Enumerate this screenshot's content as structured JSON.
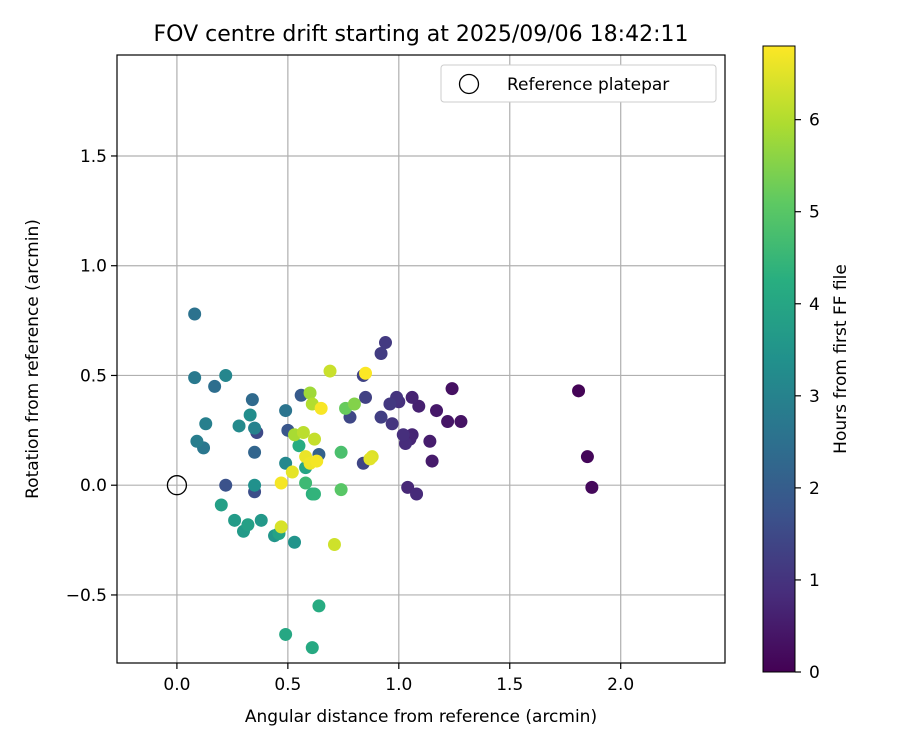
{
  "chart_data": {
    "type": "scatter",
    "title": "FOV centre drift starting at 2025/09/06 18:42:11",
    "xlabel": "Angular distance from reference (arcmin)",
    "ylabel": "Rotation from reference (arcmin)",
    "xlim": [
      -0.27,
      2.47
    ],
    "ylim": [
      -0.81,
      1.96
    ],
    "xticks": [
      0.0,
      0.5,
      1.0,
      1.5,
      2.0
    ],
    "xtick_labels": [
      "0.0",
      "0.5",
      "1.0",
      "1.5",
      "2.0"
    ],
    "yticks": [
      -0.5,
      0.0,
      0.5,
      1.0,
      1.5
    ],
    "ytick_labels": [
      "−0.5",
      "0.0",
      "0.5",
      "1.0",
      "1.5"
    ],
    "grid": true,
    "legend": {
      "placement": "top-right",
      "entries": [
        "Reference platepar"
      ]
    },
    "reference_point": {
      "x": 0.0,
      "y": 0.0,
      "label": "Reference platepar"
    },
    "colorbar": {
      "label": "Hours from first FF file",
      "range": [
        0,
        6.8
      ],
      "ticks": [
        0,
        1,
        2,
        3,
        4,
        5,
        6
      ],
      "tick_labels": [
        "0",
        "1",
        "2",
        "3",
        "4",
        "5",
        "6"
      ],
      "colormap": "viridis"
    },
    "points": [
      {
        "x": 1.81,
        "y": 0.43,
        "c": 0.05
      },
      {
        "x": 1.85,
        "y": 0.13,
        "c": 0.1
      },
      {
        "x": 1.87,
        "y": -0.01,
        "c": 0.15
      },
      {
        "x": 1.24,
        "y": 0.44,
        "c": 0.3
      },
      {
        "x": 1.28,
        "y": 0.29,
        "c": 0.35
      },
      {
        "x": 1.22,
        "y": 0.29,
        "c": 0.4
      },
      {
        "x": 1.17,
        "y": 0.34,
        "c": 0.45
      },
      {
        "x": 1.15,
        "y": 0.11,
        "c": 0.5
      },
      {
        "x": 1.14,
        "y": 0.2,
        "c": 0.55
      },
      {
        "x": 1.09,
        "y": 0.36,
        "c": 0.6
      },
      {
        "x": 1.06,
        "y": 0.4,
        "c": 0.65
      },
      {
        "x": 1.06,
        "y": 0.23,
        "c": 0.7
      },
      {
        "x": 1.05,
        "y": 0.21,
        "c": 0.72
      },
      {
        "x": 1.04,
        "y": -0.01,
        "c": 0.75
      },
      {
        "x": 1.08,
        "y": -0.04,
        "c": 0.8
      },
      {
        "x": 1.03,
        "y": 0.19,
        "c": 0.85
      },
      {
        "x": 1.02,
        "y": 0.23,
        "c": 0.9
      },
      {
        "x": 1.0,
        "y": 0.38,
        "c": 0.95
      },
      {
        "x": 0.99,
        "y": 0.4,
        "c": 1.0
      },
      {
        "x": 0.97,
        "y": 0.28,
        "c": 1.05
      },
      {
        "x": 0.96,
        "y": 0.37,
        "c": 1.1
      },
      {
        "x": 0.94,
        "y": 0.65,
        "c": 1.15
      },
      {
        "x": 0.92,
        "y": 0.6,
        "c": 1.2
      },
      {
        "x": 0.92,
        "y": 0.31,
        "c": 1.25
      },
      {
        "x": 0.85,
        "y": 0.4,
        "c": 1.3
      },
      {
        "x": 0.84,
        "y": 0.5,
        "c": 1.35
      },
      {
        "x": 0.84,
        "y": 0.1,
        "c": 1.4
      },
      {
        "x": 0.78,
        "y": 0.31,
        "c": 1.45
      },
      {
        "x": 0.36,
        "y": 0.24,
        "c": 1.5
      },
      {
        "x": 0.35,
        "y": -0.03,
        "c": 1.6
      },
      {
        "x": 0.22,
        "y": 0.0,
        "c": 1.7
      },
      {
        "x": 0.5,
        "y": 0.25,
        "c": 1.8
      },
      {
        "x": 0.56,
        "y": 0.41,
        "c": 1.9
      },
      {
        "x": 0.64,
        "y": 0.14,
        "c": 2.1
      },
      {
        "x": 0.35,
        "y": 0.15,
        "c": 2.2
      },
      {
        "x": 0.34,
        "y": 0.39,
        "c": 2.35
      },
      {
        "x": 0.17,
        "y": 0.45,
        "c": 2.45
      },
      {
        "x": 0.08,
        "y": 0.78,
        "c": 2.55
      },
      {
        "x": 0.49,
        "y": 0.34,
        "c": 2.6
      },
      {
        "x": 0.12,
        "y": 0.17,
        "c": 2.7
      },
      {
        "x": 0.08,
        "y": 0.49,
        "c": 2.75
      },
      {
        "x": 0.09,
        "y": 0.2,
        "c": 2.85
      },
      {
        "x": 0.13,
        "y": 0.28,
        "c": 2.9
      },
      {
        "x": 0.35,
        "y": 0.26,
        "c": 3.0
      },
      {
        "x": 0.22,
        "y": 0.5,
        "c": 3.1
      },
      {
        "x": 0.49,
        "y": 0.1,
        "c": 3.15
      },
      {
        "x": 0.28,
        "y": 0.27,
        "c": 3.2
      },
      {
        "x": 0.33,
        "y": 0.32,
        "c": 3.3
      },
      {
        "x": 0.35,
        "y": 0.0,
        "c": 3.4
      },
      {
        "x": 0.53,
        "y": -0.26,
        "c": 3.5
      },
      {
        "x": 0.44,
        "y": -0.23,
        "c": 3.55
      },
      {
        "x": 0.38,
        "y": -0.16,
        "c": 3.6
      },
      {
        "x": 0.3,
        "y": -0.21,
        "c": 3.65
      },
      {
        "x": 0.26,
        "y": -0.16,
        "c": 3.7
      },
      {
        "x": 0.2,
        "y": -0.09,
        "c": 3.8
      },
      {
        "x": 0.32,
        "y": -0.18,
        "c": 3.85
      },
      {
        "x": 0.46,
        "y": -0.22,
        "c": 3.9
      },
      {
        "x": 0.58,
        "y": 0.08,
        "c": 4.0
      },
      {
        "x": 0.49,
        "y": -0.68,
        "c": 4.05
      },
      {
        "x": 0.61,
        "y": -0.74,
        "c": 4.1
      },
      {
        "x": 0.64,
        "y": -0.55,
        "c": 4.15
      },
      {
        "x": 0.55,
        "y": 0.18,
        "c": 4.2
      },
      {
        "x": 0.61,
        "y": -0.04,
        "c": 4.3
      },
      {
        "x": 0.62,
        "y": -0.04,
        "c": 4.4
      },
      {
        "x": 0.58,
        "y": 0.01,
        "c": 4.6
      },
      {
        "x": 0.74,
        "y": 0.15,
        "c": 4.8
      },
      {
        "x": 0.74,
        "y": -0.02,
        "c": 5.0
      },
      {
        "x": 0.76,
        "y": 0.35,
        "c": 5.2
      },
      {
        "x": 0.8,
        "y": 0.37,
        "c": 5.5
      },
      {
        "x": 0.6,
        "y": 0.42,
        "c": 5.8
      },
      {
        "x": 0.53,
        "y": 0.23,
        "c": 5.9
      },
      {
        "x": 0.61,
        "y": 0.37,
        "c": 6.0
      },
      {
        "x": 0.57,
        "y": 0.24,
        "c": 6.1
      },
      {
        "x": 0.62,
        "y": 0.21,
        "c": 6.2
      },
      {
        "x": 0.69,
        "y": 0.52,
        "c": 6.25
      },
      {
        "x": 0.71,
        "y": -0.27,
        "c": 6.3
      },
      {
        "x": 0.47,
        "y": -0.19,
        "c": 6.4
      },
      {
        "x": 0.88,
        "y": 0.13,
        "c": 6.45
      },
      {
        "x": 0.87,
        "y": 0.12,
        "c": 6.5
      },
      {
        "x": 0.52,
        "y": 0.06,
        "c": 6.55
      },
      {
        "x": 0.58,
        "y": 0.13,
        "c": 6.6
      },
      {
        "x": 0.6,
        "y": 0.1,
        "c": 6.65
      },
      {
        "x": 0.63,
        "y": 0.11,
        "c": 6.7
      },
      {
        "x": 0.47,
        "y": 0.01,
        "c": 6.72
      },
      {
        "x": 0.65,
        "y": 0.35,
        "c": 6.75
      },
      {
        "x": 0.85,
        "y": 0.51,
        "c": 6.78
      }
    ]
  }
}
